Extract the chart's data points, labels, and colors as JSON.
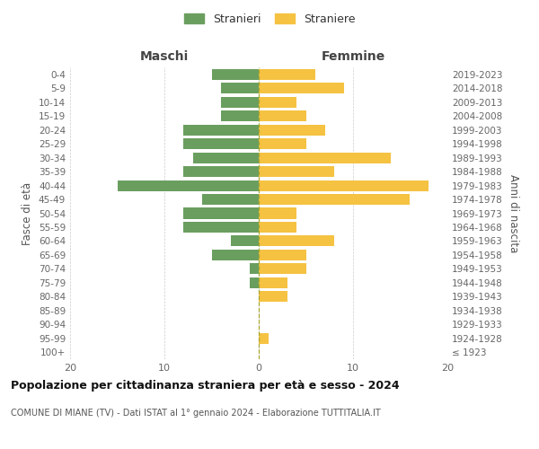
{
  "age_groups": [
    "100+",
    "95-99",
    "90-94",
    "85-89",
    "80-84",
    "75-79",
    "70-74",
    "65-69",
    "60-64",
    "55-59",
    "50-54",
    "45-49",
    "40-44",
    "35-39",
    "30-34",
    "25-29",
    "20-24",
    "15-19",
    "10-14",
    "5-9",
    "0-4"
  ],
  "birth_years": [
    "≤ 1923",
    "1924-1928",
    "1929-1933",
    "1934-1938",
    "1939-1943",
    "1944-1948",
    "1949-1953",
    "1954-1958",
    "1959-1963",
    "1964-1968",
    "1969-1973",
    "1974-1978",
    "1979-1983",
    "1984-1988",
    "1989-1993",
    "1994-1998",
    "1999-2003",
    "2004-2008",
    "2009-2013",
    "2014-2018",
    "2019-2023"
  ],
  "maschi": [
    0,
    0,
    0,
    0,
    0,
    1,
    1,
    5,
    3,
    8,
    8,
    6,
    15,
    8,
    7,
    8,
    8,
    4,
    4,
    4,
    5
  ],
  "femmine": [
    0,
    1,
    0,
    0,
    3,
    3,
    5,
    5,
    8,
    4,
    4,
    16,
    18,
    8,
    14,
    5,
    7,
    5,
    4,
    9,
    6
  ],
  "color_maschi": "#6a9e5f",
  "color_femmine": "#f5c242",
  "xlim": 20,
  "title": "Popolazione per cittadinanza straniera per età e sesso - 2024",
  "subtitle": "COMUNE DI MIANE (TV) - Dati ISTAT al 1° gennaio 2024 - Elaborazione TUTTITALIA.IT",
  "xlabel_left": "Maschi",
  "xlabel_right": "Femmine",
  "ylabel_left": "Fasce di età",
  "ylabel_right": "Anni di nascita",
  "legend_maschi": "Stranieri",
  "legend_femmine": "Straniere",
  "background_color": "#ffffff",
  "grid_color": "#cccccc"
}
